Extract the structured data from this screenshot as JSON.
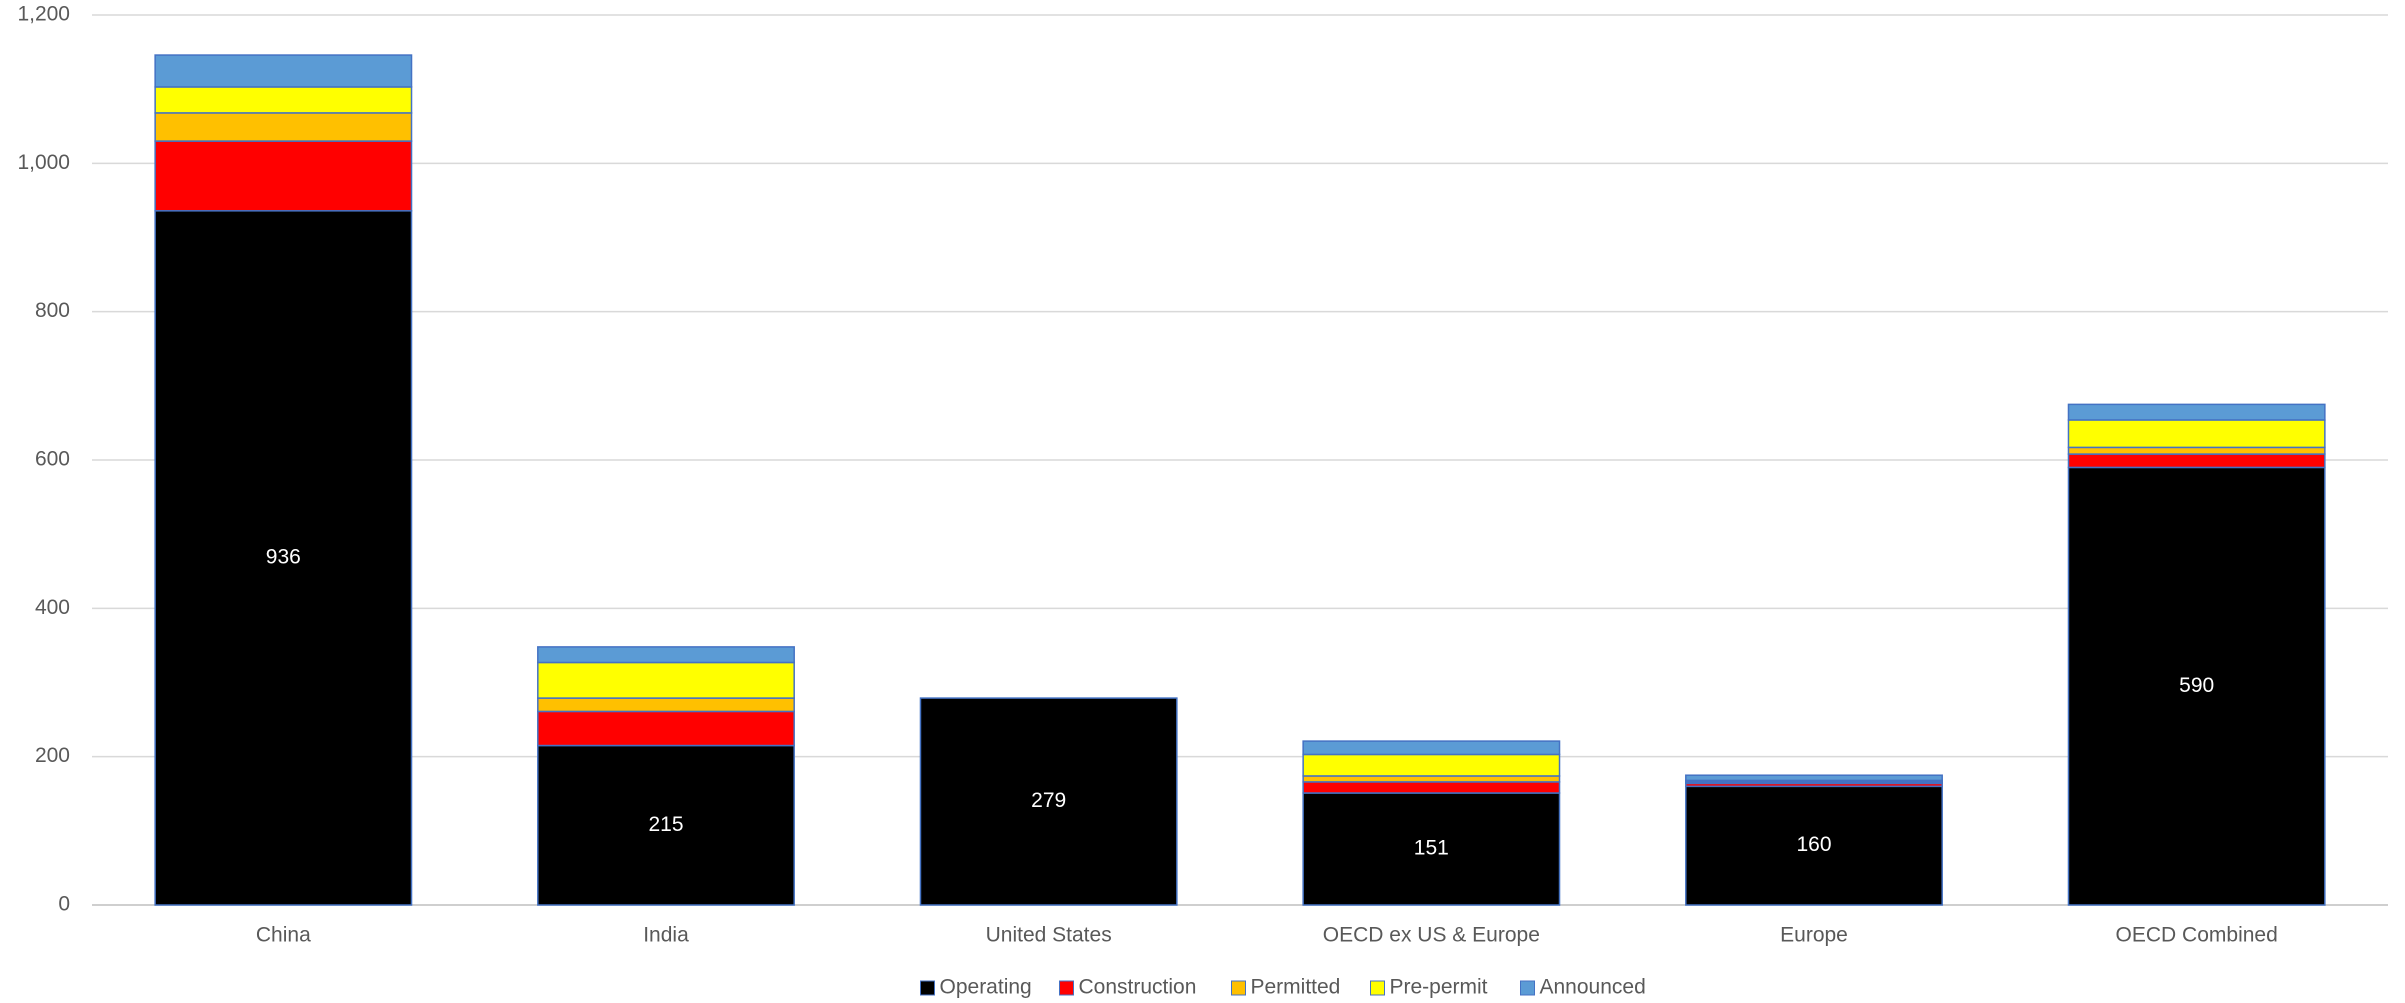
{
  "chart_data": {
    "type": "stacked_bar",
    "categories": [
      "China",
      "India",
      "United States",
      "OECD ex US & Europe",
      "Europe",
      "OECD Combined"
    ],
    "series": [
      {
        "name": "Operating",
        "color": "#000000",
        "values": [
          936,
          215,
          279,
          151,
          160,
          590
        ],
        "show_labels": true
      },
      {
        "name": "Construction",
        "color": "#ff0000",
        "values": [
          94,
          46,
          0,
          15,
          4,
          18
        ]
      },
      {
        "name": "Permitted",
        "color": "#ffc000",
        "values": [
          38,
          18,
          0,
          8,
          2,
          9
        ]
      },
      {
        "name": "Pre-permit",
        "color": "#ffff00",
        "values": [
          35,
          48,
          0,
          29,
          2,
          37
        ]
      },
      {
        "name": "Announced",
        "color": "#5b9bd5",
        "values": [
          43,
          21,
          0,
          18,
          7,
          21
        ]
      }
    ],
    "ylim": [
      0,
      1200
    ],
    "yticks": [
      0,
      200,
      400,
      600,
      800,
      {
        "value": 1000,
        "label": "1,000"
      },
      {
        "value": 1200,
        "label": "1,200"
      }
    ],
    "grid": true,
    "legend": "bottom"
  }
}
